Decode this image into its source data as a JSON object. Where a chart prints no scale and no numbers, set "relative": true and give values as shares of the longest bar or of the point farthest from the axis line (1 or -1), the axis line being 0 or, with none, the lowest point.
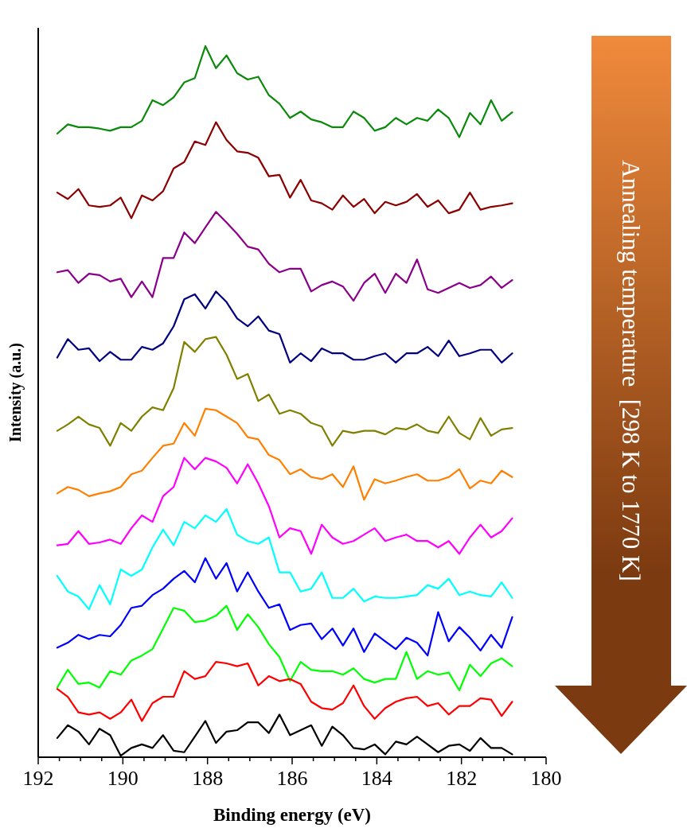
{
  "chart_data": {
    "type": "line",
    "relative": true,
    "xlabel": "Binding energy (eV)",
    "ylabel": "Intensity (a.u.)",
    "annotations": [
      "Annealing temperature  [298 K to 1770 K]"
    ],
    "xlim": [
      192,
      180
    ],
    "xticks": [
      192,
      {
        "value": 191.5,
        "label": null
      },
      {
        "value": 191,
        "label": null
      },
      {
        "value": 190.5,
        "label": null
      },
      190,
      {
        "value": 189.5,
        "label": null
      },
      {
        "value": 189,
        "label": null
      },
      {
        "value": 188.5,
        "label": null
      },
      188,
      {
        "value": 187.5,
        "label": null
      },
      {
        "value": 187,
        "label": null
      },
      {
        "value": 186.5,
        "label": null
      },
      186,
      {
        "value": 185.5,
        "label": null
      },
      {
        "value": 185,
        "label": null
      },
      {
        "value": 184.5,
        "label": null
      },
      184,
      {
        "value": 183.5,
        "label": null
      },
      {
        "value": 183,
        "label": null
      },
      {
        "value": 182.5,
        "label": null
      },
      182,
      {
        "value": 181.5,
        "label": null
      },
      {
        "value": 181,
        "label": null
      },
      {
        "value": 180.5,
        "label": null
      },
      180
    ],
    "x": [
      191.55,
      191.3,
      191.05,
      190.8,
      190.55,
      190.3,
      190.05,
      189.8,
      189.55,
      189.3,
      189.05,
      188.8,
      188.55,
      188.3,
      188.05,
      187.8,
      187.55,
      187.3,
      187.05,
      186.8,
      186.55,
      186.3,
      186.05,
      185.8,
      185.55,
      185.3,
      185.05,
      184.8,
      184.55,
      184.3,
      184.05,
      183.8,
      183.55,
      183.3,
      183.05,
      182.8,
      182.55,
      182.3,
      182.05,
      181.8,
      181.55,
      181.3,
      181.05,
      180.8
    ],
    "series": [
      {
        "color": "#0a8a0a",
        "values": [
          0.877,
          0.89,
          0.886,
          0.886,
          0.884,
          0.881,
          0.886,
          0.886,
          0.895,
          0.924,
          0.917,
          0.928,
          0.949,
          0.955,
          1,
          0.969,
          0.987,
          0.962,
          0.953,
          0.957,
          0.931,
          0.919,
          0.899,
          0.908,
          0.897,
          0.893,
          0.886,
          0.886,
          0.908,
          0.899,
          0.881,
          0.886,
          0.899,
          0.89,
          0.899,
          0.895,
          0.911,
          0.899,
          0.872,
          0.906,
          0.89,
          0.924,
          0.895,
          0.907
        ]
      },
      {
        "color": "#8b0000",
        "values": [
          0.794,
          0.785,
          0.799,
          0.776,
          0.774,
          0.776,
          0.787,
          0.758,
          0.79,
          0.783,
          0.796,
          0.828,
          0.837,
          0.866,
          0.861,
          0.893,
          0.868,
          0.852,
          0.85,
          0.843,
          0.817,
          0.819,
          0.787,
          0.812,
          0.783,
          0.779,
          0.77,
          0.79,
          0.774,
          0.785,
          0.765,
          0.781,
          0.776,
          0.781,
          0.792,
          0.774,
          0.783,
          0.765,
          0.77,
          0.794,
          0.77,
          0.774,
          0.776,
          0.779
        ]
      },
      {
        "color": "#8b008b",
        "values": [
          0.682,
          0.685,
          0.667,
          0.68,
          0.678,
          0.669,
          0.673,
          0.647,
          0.669,
          0.647,
          0.702,
          0.702,
          0.738,
          0.723,
          0.745,
          0.767,
          0.752,
          0.736,
          0.718,
          0.714,
          0.694,
          0.682,
          0.687,
          0.687,
          0.655,
          0.664,
          0.669,
          0.662,
          0.642,
          0.667,
          0.68,
          0.653,
          0.68,
          0.667,
          0.7,
          0.658,
          0.653,
          0.66,
          0.667,
          0.66,
          0.664,
          0.676,
          0.66,
          0.671
        ]
      },
      {
        "color": "#000080",
        "values": [
          0.562,
          0.588,
          0.573,
          0.575,
          0.557,
          0.57,
          0.559,
          0.559,
          0.577,
          0.573,
          0.582,
          0.606,
          0.644,
          0.651,
          0.631,
          0.655,
          0.64,
          0.617,
          0.606,
          0.62,
          0.6,
          0.595,
          0.555,
          0.568,
          0.557,
          0.575,
          0.568,
          0.568,
          0.559,
          0.559,
          0.564,
          0.568,
          0.555,
          0.568,
          0.568,
          0.577,
          0.564,
          0.586,
          0.564,
          0.568,
          0.573,
          0.573,
          0.555,
          0.568
        ]
      },
      {
        "color": "#808000",
        "values": [
          0.459,
          0.468,
          0.479,
          0.468,
          0.463,
          0.438,
          0.47,
          0.459,
          0.479,
          0.492,
          0.488,
          0.519,
          0.584,
          0.57,
          0.588,
          0.591,
          0.566,
          0.532,
          0.539,
          0.501,
          0.51,
          0.483,
          0.488,
          0.483,
          0.47,
          0.465,
          0.438,
          0.459,
          0.456,
          0.459,
          0.459,
          0.454,
          0.463,
          0.461,
          0.468,
          0.459,
          0.456,
          0.479,
          0.456,
          0.447,
          0.477,
          0.452,
          0.461,
          0.463
        ]
      },
      {
        "color": "#ff8000",
        "values": [
          0.371,
          0.38,
          0.376,
          0.367,
          0.371,
          0.374,
          0.38,
          0.398,
          0.403,
          0.421,
          0.438,
          0.441,
          0.47,
          0.452,
          0.49,
          0.488,
          0.479,
          0.47,
          0.45,
          0.447,
          0.425,
          0.418,
          0.398,
          0.405,
          0.394,
          0.391,
          0.398,
          0.38,
          0.409,
          0.362,
          0.391,
          0.385,
          0.389,
          0.394,
          0.398,
          0.389,
          0.389,
          0.394,
          0.405,
          0.378,
          0.389,
          0.385,
          0.403,
          0.394
        ]
      },
      {
        "color": "#ff00ff",
        "values": [
          0.298,
          0.3,
          0.318,
          0.3,
          0.302,
          0.306,
          0.3,
          0.322,
          0.34,
          0.331,
          0.367,
          0.38,
          0.421,
          0.405,
          0.421,
          0.416,
          0.407,
          0.385,
          0.412,
          0.385,
          0.353,
          0.309,
          0.322,
          0.318,
          0.286,
          0.327,
          0.309,
          0.3,
          0.304,
          0.313,
          0.322,
          0.304,
          0.309,
          0.313,
          0.304,
          0.304,
          0.295,
          0.304,
          0.286,
          0.309,
          0.327,
          0.309,
          0.318,
          0.336
        ]
      },
      {
        "color": "#00ffff",
        "values": [
          0.255,
          0.233,
          0.226,
          0.208,
          0.242,
          0.215,
          0.264,
          0.255,
          0.264,
          0.295,
          0.32,
          0.298,
          0.331,
          0.322,
          0.34,
          0.331,
          0.349,
          0.313,
          0.304,
          0.3,
          0.309,
          0.26,
          0.26,
          0.233,
          0.237,
          0.26,
          0.224,
          0.224,
          0.237,
          0.219,
          0.226,
          0.224,
          0.224,
          0.226,
          0.228,
          0.242,
          0.237,
          0.251,
          0.228,
          0.233,
          0.228,
          0.226,
          0.246,
          0.224
        ]
      },
      {
        "color": "#0000ff",
        "values": [
          0.154,
          0.161,
          0.172,
          0.166,
          0.172,
          0.17,
          0.186,
          0.21,
          0.213,
          0.228,
          0.237,
          0.251,
          0.262,
          0.246,
          0.28,
          0.251,
          0.273,
          0.233,
          0.26,
          0.233,
          0.21,
          0.215,
          0.179,
          0.186,
          0.188,
          0.166,
          0.181,
          0.157,
          0.181,
          0.148,
          0.174,
          0.163,
          0.152,
          0.168,
          0.161,
          0.143,
          0.204,
          0.163,
          0.183,
          0.168,
          0.15,
          0.172,
          0.154,
          0.197
        ]
      },
      {
        "color": "#00ff00",
        "values": [
          0.098,
          0.123,
          0.103,
          0.105,
          0.098,
          0.121,
          0.116,
          0.136,
          0.143,
          0.152,
          0.181,
          0.21,
          0.206,
          0.19,
          0.192,
          0.199,
          0.213,
          0.179,
          0.201,
          0.183,
          0.159,
          0.141,
          0.107,
          0.134,
          0.123,
          0.121,
          0.121,
          0.116,
          0.125,
          0.11,
          0.105,
          0.11,
          0.11,
          0.148,
          0.11,
          0.121,
          0.116,
          0.119,
          0.094,
          0.13,
          0.114,
          0.132,
          0.139,
          0.128
        ]
      },
      {
        "color": "#ff0000",
        "values": [
          0.096,
          0.085,
          0.063,
          0.06,
          0.063,
          0.054,
          0.063,
          0.081,
          0.051,
          0.076,
          0.085,
          0.085,
          0.121,
          0.11,
          0.114,
          0.134,
          0.132,
          0.128,
          0.132,
          0.101,
          0.114,
          0.107,
          0.11,
          0.103,
          0.078,
          0.069,
          0.067,
          0.076,
          0.101,
          0.072,
          0.054,
          0.069,
          0.078,
          0.083,
          0.085,
          0.072,
          0.076,
          0.06,
          0.072,
          0.072,
          0.083,
          0.081,
          0.058,
          0.078
        ]
      },
      {
        "color": "#000000",
        "values": [
          0.027,
          0.045,
          0.036,
          0.018,
          0.04,
          0.031,
          0.002,
          0.013,
          0.018,
          0.013,
          0.031,
          0.009,
          0.007,
          0.029,
          0.051,
          0.02,
          0.036,
          0.038,
          0.049,
          0.049,
          0.034,
          0.06,
          0.031,
          0.038,
          0.045,
          0.016,
          0.043,
          0.031,
          0.013,
          0.011,
          0.018,
          0.004,
          0.022,
          0.018,
          0.029,
          0.018,
          0.007,
          0.016,
          0.018,
          0.009,
          0.027,
          0.013,
          0.013,
          0.004
        ]
      }
    ]
  }
}
